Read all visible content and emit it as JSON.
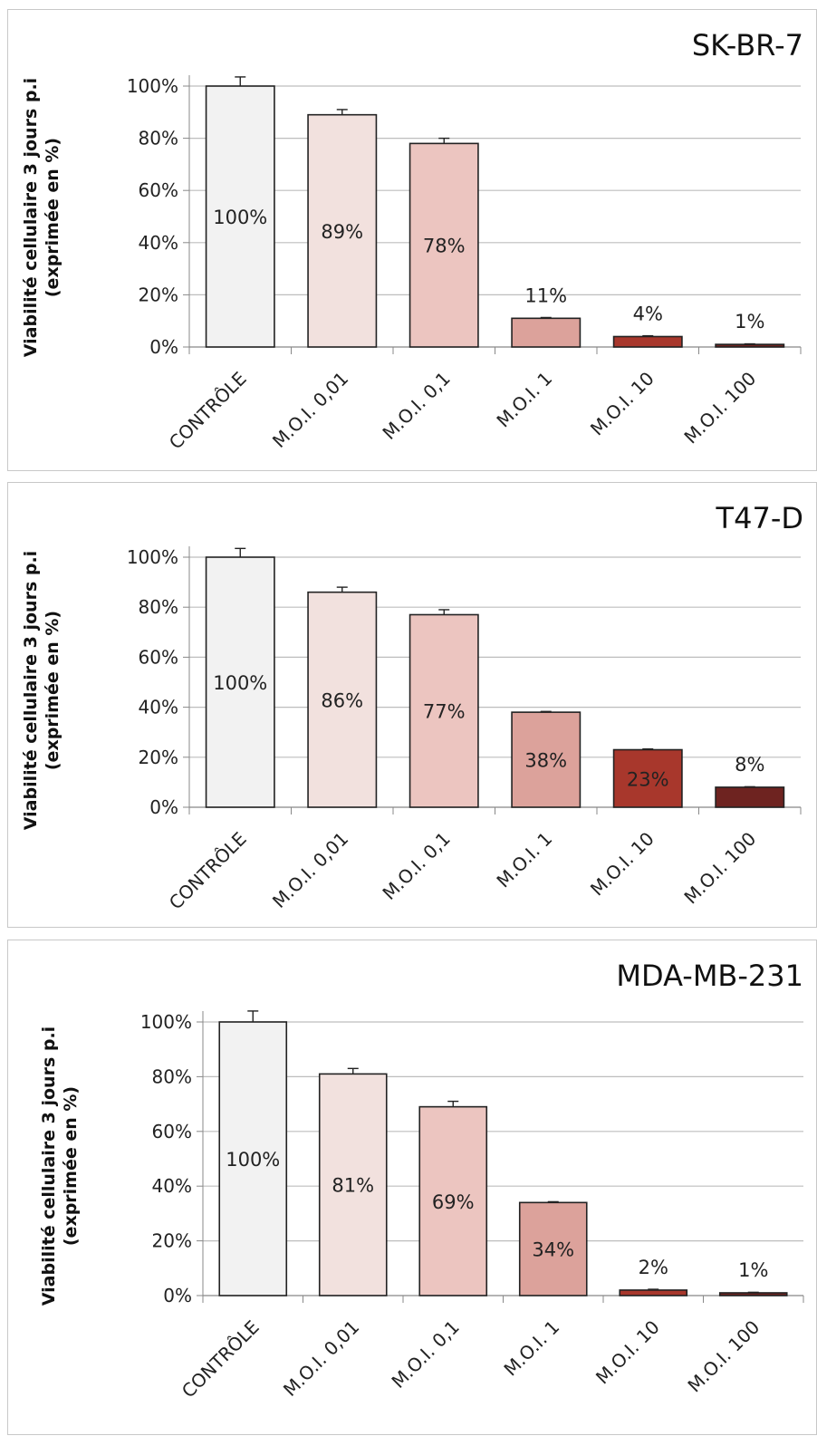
{
  "chart_data": [
    {
      "type": "bar",
      "title": "SK-BR-7",
      "ylabel": "Viabilité cellulaire 3 jours p.i\n(exprimée en %)",
      "ylim": [
        0,
        100
      ],
      "yticks": [
        "0%",
        "20%",
        "40%",
        "60%",
        "80%",
        "100%"
      ],
      "categories": [
        "CONTRÔLE",
        "M.O.I. 0,01",
        "M.O.I. 0,1",
        "M.O.I. 1",
        "M.O.I. 10",
        "M.O.I. 100"
      ],
      "values": [
        100,
        89,
        78,
        11,
        4,
        1
      ],
      "labels": [
        "100%",
        "89%",
        "78%",
        "11%",
        "4%",
        "1%"
      ],
      "errors": [
        3.5,
        2,
        2,
        0.3,
        0.3,
        0.2
      ],
      "colors": [
        "#f2f2f2",
        "#f2e1de",
        "#ecc5c0",
        "#dca29b",
        "#a8372c",
        "#6e2320"
      ],
      "grid": true,
      "legend": "none"
    },
    {
      "type": "bar",
      "title": "T47-D",
      "ylabel": "Viabilité cellulaire 3 jours p.i\n(exprimée en %)",
      "ylim": [
        0,
        100
      ],
      "yticks": [
        "0%",
        "20%",
        "40%",
        "60%",
        "80%",
        "100%"
      ],
      "categories": [
        "CONTRÔLE",
        "M.O.I. 0,01",
        "M.O.I. 0,1",
        "M.O.I. 1",
        "M.O.I. 10",
        "M.O.I. 100"
      ],
      "values": [
        100,
        86,
        77,
        38,
        23,
        8
      ],
      "labels": [
        "100%",
        "86%",
        "77%",
        "38%",
        "23%",
        "8%"
      ],
      "errors": [
        3.5,
        2,
        2,
        0.3,
        0.3,
        0.2
      ],
      "colors": [
        "#f2f2f2",
        "#f2e1de",
        "#ecc5c0",
        "#dca29b",
        "#a8372c",
        "#6e2320"
      ],
      "grid": true,
      "legend": "none"
    },
    {
      "type": "bar",
      "title": "MDA-MB-231",
      "ylabel": "Viabilité cellulaire 3 jours p.i\n(exprimée en %)",
      "ylim": [
        0,
        100
      ],
      "yticks": [
        "0%",
        "20%",
        "40%",
        "60%",
        "80%",
        "100%"
      ],
      "categories": [
        "CONTRÔLE",
        "M.O.I. 0,01",
        "M.O.I. 0,1",
        "M.O.I. 1",
        "M.O.I. 10",
        "M.O.I. 100"
      ],
      "values": [
        100,
        81,
        69,
        34,
        2,
        1
      ],
      "labels": [
        "100%",
        "81%",
        "69%",
        "34%",
        "2%",
        "1%"
      ],
      "errors": [
        4,
        2,
        2,
        0.3,
        0.3,
        0.2
      ],
      "colors": [
        "#f2f2f2",
        "#f2e1de",
        "#ecc5c0",
        "#dca29b",
        "#a8372c",
        "#6e2320"
      ],
      "grid": true,
      "legend": "none"
    }
  ]
}
